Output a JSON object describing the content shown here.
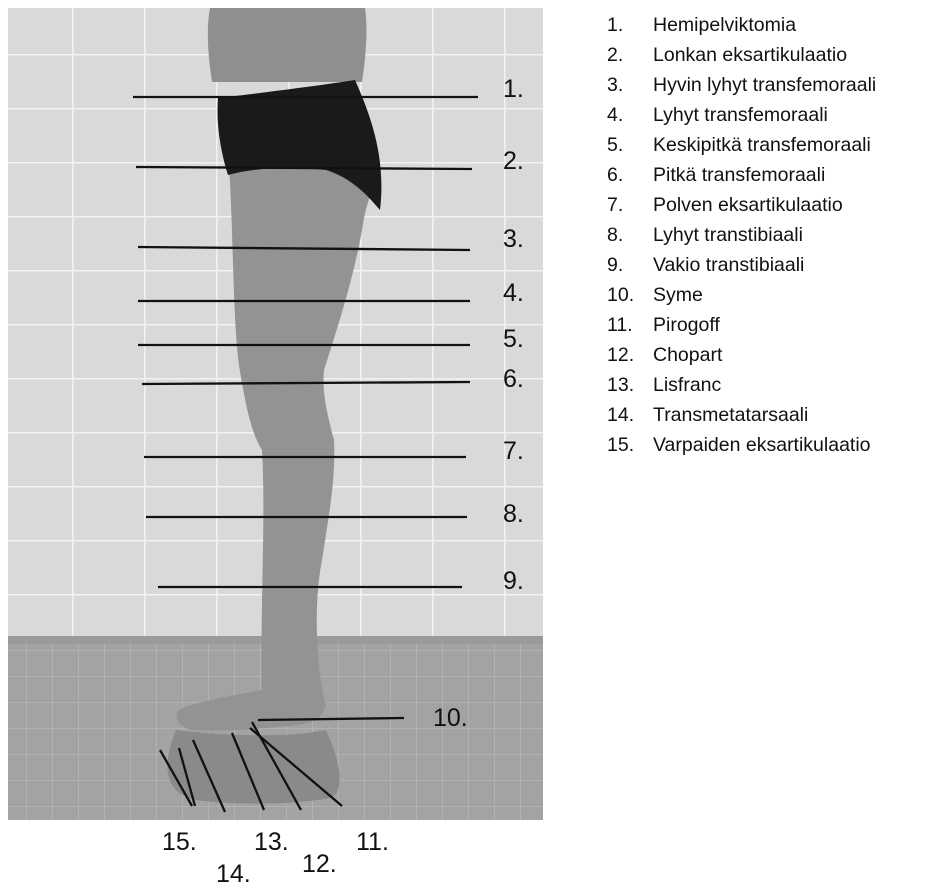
{
  "legend": {
    "items": [
      {
        "num": "1.",
        "label": "Hemipelviktomia"
      },
      {
        "num": "2.",
        "label": "Lonkan eksartikulaatio"
      },
      {
        "num": "3.",
        "label": "Hyvin lyhyt transfemoraali"
      },
      {
        "num": "4.",
        "label": "Lyhyt transfemoraali"
      },
      {
        "num": "5.",
        "label": "Keskipitkä transfemoraali"
      },
      {
        "num": "6.",
        "label": "Pitkä transfemoraali"
      },
      {
        "num": "7.",
        "label": "Polven eksartikulaatio"
      },
      {
        "num": "8.",
        "label": "Lyhyt transtibiaali"
      },
      {
        "num": "9.",
        "label": "Vakio transtibiaali"
      },
      {
        "num": "10.",
        "label": "Syme"
      },
      {
        "num": "11.",
        "label": "Pirogoff"
      },
      {
        "num": "12.",
        "label": "Chopart"
      },
      {
        "num": "13.",
        "label": "Lisfranc"
      },
      {
        "num": "14.",
        "label": "Transmetatarsaali"
      },
      {
        "num": "15.",
        "label": "Varpaiden eksartikulaatio"
      }
    ]
  },
  "figure": {
    "level_labels": [
      "1.",
      "2.",
      "3.",
      "4.",
      "5.",
      "6.",
      "7.",
      "8.",
      "9.",
      "10.",
      "11.",
      "12.",
      "13.",
      "14.",
      "15."
    ]
  }
}
